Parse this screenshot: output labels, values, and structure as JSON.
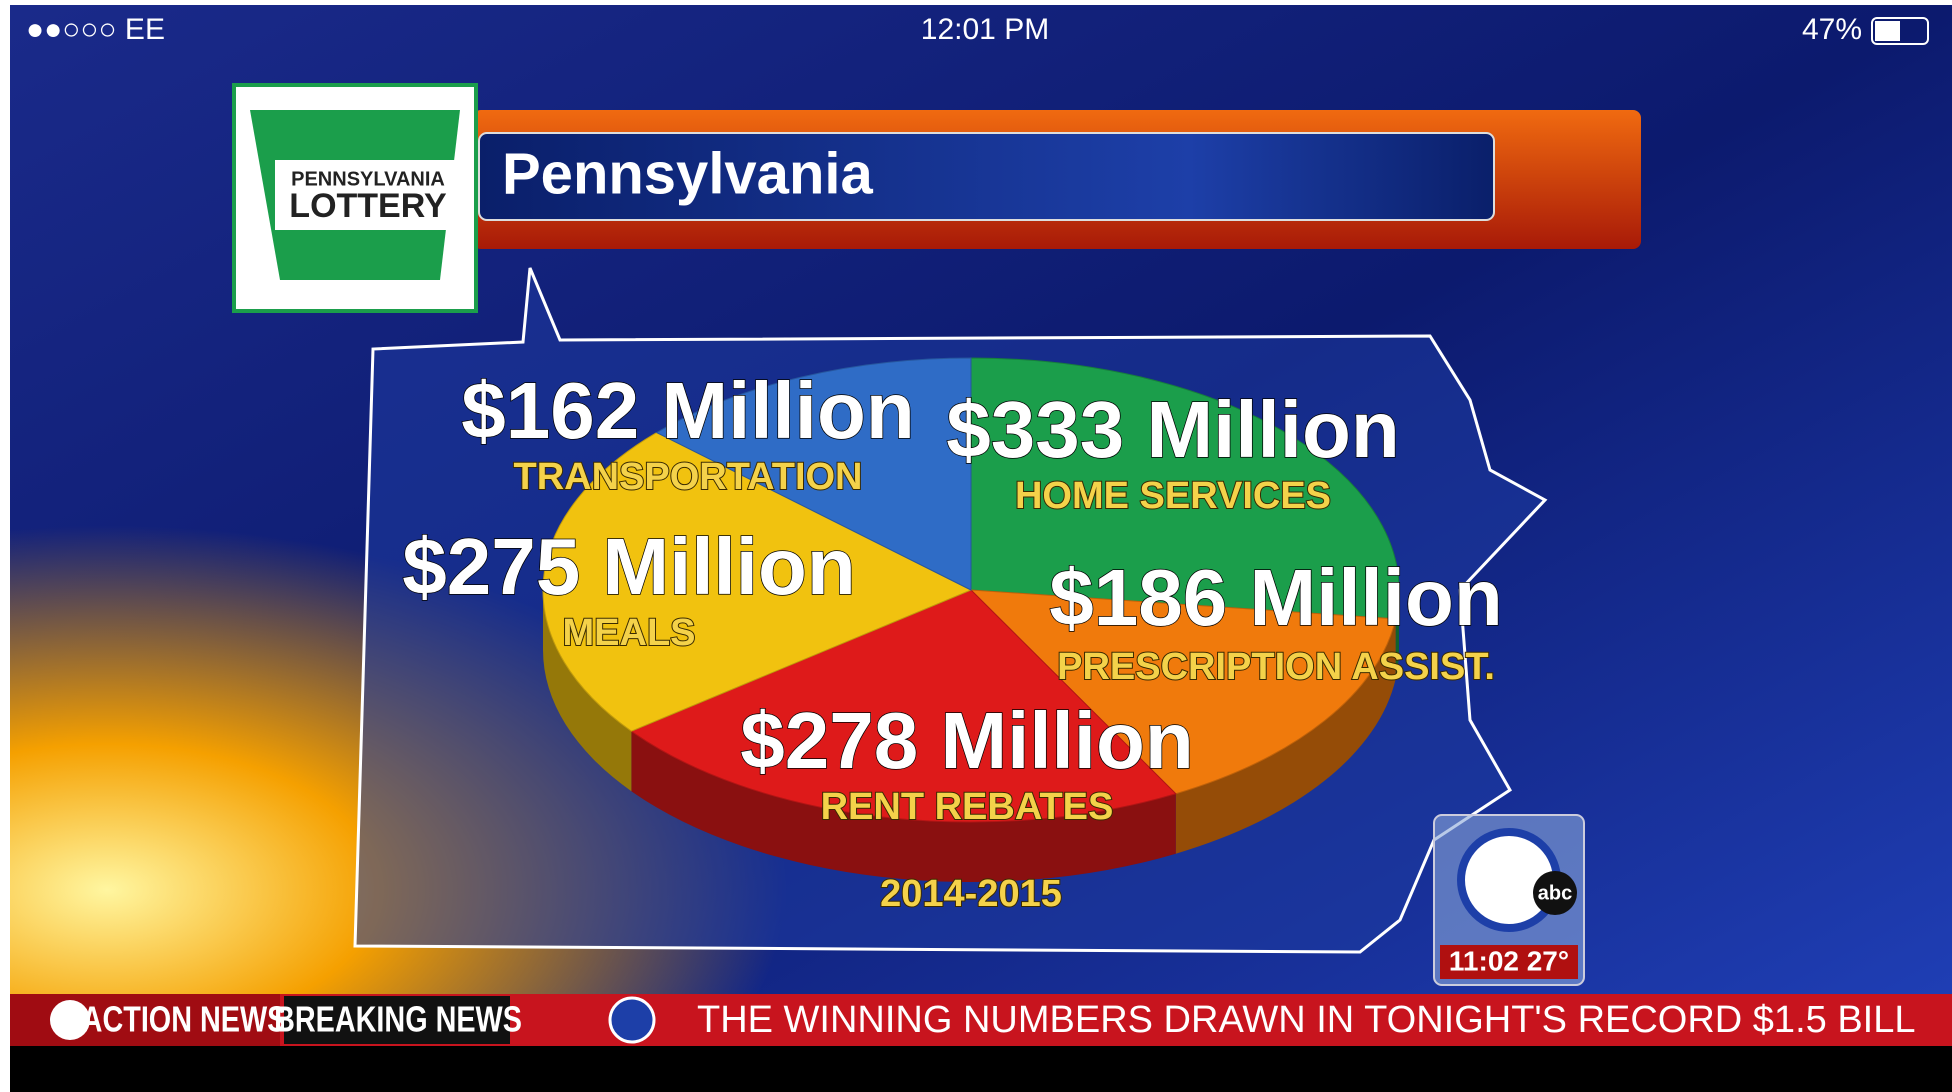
{
  "status_bar": {
    "carrier": "●●○○○ EE",
    "time": "12:01 PM",
    "battery": "47%"
  },
  "logo": {
    "line1": "PENNSYLVANIA",
    "line2": "LOTTERY"
  },
  "chart_data": {
    "type": "pie",
    "title": "Pennsylvania",
    "subtitle": "2014-2015",
    "categories": [
      "HOME SERVICES",
      "PRESCRIPTION ASSIST.",
      "RENT REBATES",
      "MEALS",
      "TRANSPORTATION"
    ],
    "values": [
      333,
      186,
      278,
      275,
      162
    ],
    "value_labels": [
      "$333 Million",
      "$186 Million",
      "$278 Million",
      "$275 Million",
      "$162 Million"
    ],
    "colors": [
      "#1b9e4b",
      "#f07a0c",
      "#de1a1a",
      "#f1c20f",
      "#2f6cc6"
    ]
  },
  "station_bug": {
    "brand": "abc",
    "clock": "11:02  27°"
  },
  "ticker": {
    "brand": "ACTION NEWS",
    "label": "BREAKING NEWS",
    "text": "THE WINNING NUMBERS DRAWN IN TONIGHT'S RECORD $1.5 BILL"
  }
}
